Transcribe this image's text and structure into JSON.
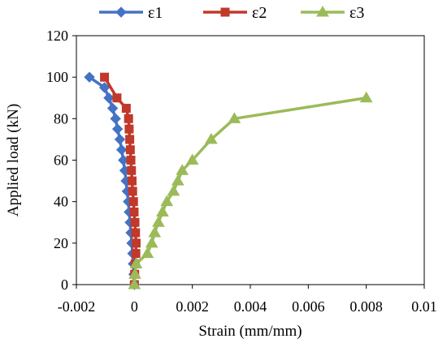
{
  "chart_data": {
    "type": "line",
    "xlabel": "Strain (mm/mm)",
    "ylabel": "Applied load (kN)",
    "xlim": [
      -0.002,
      0.01
    ],
    "ylim": [
      0,
      120
    ],
    "xticks": [
      -0.002,
      0,
      0.002,
      0.004,
      0.006,
      0.008,
      0.01
    ],
    "xtick_labels": [
      "-0.002",
      "0",
      "0.002",
      "0.004",
      "0.006",
      "0.008",
      "0.01"
    ],
    "yticks": [
      0,
      20,
      40,
      60,
      80,
      100,
      120
    ],
    "ytick_labels": [
      "0",
      "20",
      "40",
      "60",
      "80",
      "100",
      "120"
    ],
    "grid": false,
    "legend_position": "top",
    "series": [
      {
        "name": "ε1",
        "color": "#4472c4",
        "marker": "diamond",
        "x": [
          0,
          -2e-05,
          -4e-05,
          -6e-05,
          -9e-05,
          -0.00012,
          -0.00015,
          -0.00018,
          -0.00021,
          -0.00025,
          -0.00029,
          -0.00033,
          -0.00038,
          -0.00044,
          -0.0005,
          -0.00058,
          -0.00065,
          -0.00075,
          -0.00088,
          -0.00103,
          -0.00155
        ],
        "y": [
          0,
          5,
          10,
          15,
          20,
          25,
          30,
          35,
          40,
          45,
          50,
          55,
          60,
          65,
          70,
          75,
          80,
          85,
          90,
          95,
          100
        ]
      },
      {
        "name": "ε2",
        "color": "#c0392b",
        "marker": "square",
        "x": [
          0,
          1e-05,
          3e-05,
          5e-05,
          6e-05,
          4e-05,
          2e-05,
          -1e-05,
          -3e-05,
          -6e-05,
          -8e-05,
          -0.0001,
          -0.00012,
          -0.00014,
          -0.00016,
          -0.00018,
          -0.0002,
          -0.00028,
          -0.0006,
          -0.00103
        ],
        "y": [
          0,
          5,
          10,
          15,
          20,
          25,
          30,
          35,
          40,
          45,
          50,
          55,
          60,
          65,
          70,
          75,
          80,
          85,
          90,
          100
        ]
      },
      {
        "name": "ε3",
        "color": "#9bbb59",
        "marker": "triangle",
        "x": [
          0,
          2e-05,
          6e-05,
          0.00045,
          0.0006,
          0.0007,
          0.00083,
          0.00097,
          0.00112,
          0.00135,
          0.0015,
          0.00165,
          0.002,
          0.00265,
          0.00345,
          0.008
        ],
        "y": [
          0,
          5,
          10,
          15,
          20,
          25,
          30,
          35,
          40,
          45,
          50,
          55,
          60,
          70,
          80,
          90
        ]
      }
    ]
  }
}
